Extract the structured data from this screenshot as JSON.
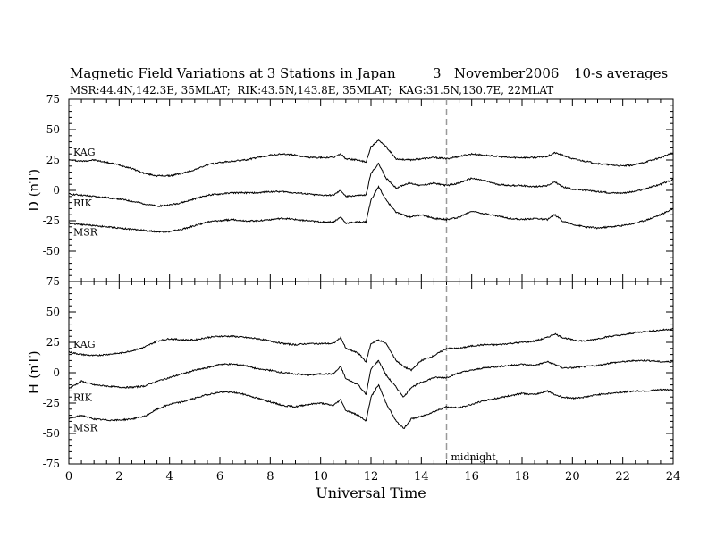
{
  "header": {
    "title": "Magnetic Field Variations at 3 Stations in Japan",
    "date": "3   November2006",
    "averaging": "10-s averages",
    "stations_line": "MSR:44.4N,142.3E, 35MLAT;  RIK:43.5N,143.8E, 35MLAT;  KAG:31.5N,130.7E, 22MLAT"
  },
  "chart_data": [
    {
      "type": "line",
      "panel": "top",
      "ylabel": "D (nT)",
      "ylim": [
        -75,
        75
      ],
      "yticks": [
        -75,
        -50,
        -25,
        0,
        25,
        50,
        75
      ],
      "xlim": [
        0,
        24
      ],
      "grid": false,
      "annotations": [
        {
          "text": "midnight",
          "x": 15
        }
      ],
      "reference_line": {
        "x": 15,
        "style": "dashed"
      },
      "series": [
        {
          "name": "KAG",
          "x": [
            0,
            0.5,
            1,
            1.5,
            2,
            2.5,
            3,
            3.5,
            4,
            4.5,
            5,
            5.5,
            6,
            6.5,
            7,
            7.5,
            8,
            8.5,
            9,
            9.5,
            10,
            10.5,
            10.8,
            11,
            11.5,
            11.8,
            12,
            12.3,
            12.6,
            13,
            13.5,
            14,
            14.5,
            15,
            15.5,
            16,
            16.5,
            17,
            17.5,
            18,
            18.5,
            19,
            19.3,
            19.6,
            20,
            20.5,
            21,
            21.5,
            22,
            22.5,
            23,
            23.5,
            24
          ],
          "values": [
            25,
            24,
            25,
            23,
            21,
            18,
            14,
            12,
            12,
            14,
            17,
            21,
            23,
            24,
            25,
            27,
            29,
            30,
            29,
            27,
            27,
            27,
            30,
            26,
            25,
            23,
            36,
            41,
            36,
            26,
            25,
            26,
            27,
            26,
            28,
            30,
            29,
            28,
            27,
            27,
            27,
            28,
            31,
            29,
            26,
            24,
            22,
            21,
            20,
            21,
            24,
            27,
            31
          ]
        },
        {
          "name": "RIK",
          "x": [
            0,
            0.5,
            1,
            1.5,
            2,
            2.5,
            3,
            3.5,
            4,
            4.5,
            5,
            5.5,
            6,
            6.5,
            7,
            7.5,
            8,
            8.5,
            9,
            9.5,
            10,
            10.5,
            10.8,
            11,
            11.5,
            11.8,
            12,
            12.3,
            12.6,
            13,
            13.5,
            14,
            14.5,
            15,
            15.5,
            16,
            16.5,
            17,
            17.5,
            18,
            18.5,
            19,
            19.3,
            19.6,
            20,
            20.5,
            21,
            21.5,
            22,
            22.5,
            23,
            23.5,
            24
          ],
          "values": [
            -3,
            -4,
            -5,
            -6,
            -7,
            -9,
            -11,
            -13,
            -12,
            -10,
            -7,
            -4,
            -3,
            -2,
            -2,
            -2,
            -1,
            -1,
            -2,
            -3,
            -4,
            -4,
            0,
            -5,
            -4,
            -4,
            14,
            22,
            10,
            2,
            6,
            4,
            6,
            4,
            6,
            10,
            8,
            5,
            4,
            4,
            3,
            4,
            7,
            3,
            1,
            0,
            -1,
            -2,
            -2,
            -1,
            2,
            5,
            9
          ]
        },
        {
          "name": "MSR",
          "x": [
            0,
            0.5,
            1,
            1.5,
            2,
            2.5,
            3,
            3.5,
            4,
            4.5,
            5,
            5.5,
            6,
            6.5,
            7,
            7.5,
            8,
            8.5,
            9,
            9.5,
            10,
            10.5,
            10.8,
            11,
            11.5,
            11.8,
            12,
            12.3,
            12.6,
            13,
            13.5,
            14,
            14.5,
            15,
            15.5,
            16,
            16.5,
            17,
            17.5,
            18,
            18.5,
            19,
            19.3,
            19.6,
            20,
            20.5,
            21,
            21.5,
            22,
            22.5,
            23,
            23.5,
            24
          ],
          "values": [
            -27,
            -28,
            -29,
            -30,
            -31,
            -32,
            -33,
            -34,
            -34,
            -32,
            -29,
            -26,
            -25,
            -24,
            -25,
            -25,
            -24,
            -23,
            -24,
            -25,
            -26,
            -26,
            -22,
            -27,
            -26,
            -26,
            -8,
            3,
            -8,
            -18,
            -22,
            -20,
            -23,
            -24,
            -22,
            -17,
            -19,
            -21,
            -23,
            -24,
            -23,
            -24,
            -20,
            -25,
            -28,
            -30,
            -31,
            -30,
            -29,
            -27,
            -24,
            -20,
            -15
          ]
        }
      ]
    },
    {
      "type": "line",
      "panel": "bottom",
      "xlabel": "Universal Time",
      "ylabel": "H (nT)",
      "ylim": [
        -75,
        75
      ],
      "yticks": [
        -75,
        -50,
        -25,
        0,
        25,
        50,
        75
      ],
      "xlim": [
        0,
        24
      ],
      "xticks": [
        0,
        2,
        4,
        6,
        8,
        10,
        12,
        14,
        16,
        18,
        20,
        22,
        24
      ],
      "grid": false,
      "series": [
        {
          "name": "KAG",
          "x": [
            0,
            0.5,
            1,
            1.5,
            2,
            2.5,
            3,
            3.5,
            4,
            4.5,
            5,
            5.5,
            6,
            6.5,
            7,
            7.5,
            8,
            8.5,
            9,
            9.5,
            10,
            10.5,
            10.8,
            11,
            11.5,
            11.8,
            12,
            12.3,
            12.6,
            13,
            13.3,
            13.6,
            14,
            14.5,
            15,
            15.5,
            16,
            16.5,
            17,
            17.5,
            18,
            18.5,
            19,
            19.3,
            19.6,
            20,
            20.5,
            21,
            21.5,
            22,
            22.5,
            23,
            23.5,
            24
          ],
          "values": [
            17,
            15,
            14,
            15,
            16,
            18,
            21,
            26,
            28,
            27,
            27,
            29,
            30,
            30,
            29,
            28,
            26,
            24,
            23,
            24,
            24,
            24,
            29,
            20,
            16,
            9,
            24,
            27,
            24,
            10,
            5,
            2,
            10,
            14,
            20,
            20,
            22,
            23,
            23,
            24,
            25,
            26,
            29,
            32,
            29,
            27,
            26,
            28,
            30,
            31,
            33,
            34,
            35,
            36
          ]
        },
        {
          "name": "RIK",
          "x": [
            0,
            0.5,
            1,
            1.5,
            2,
            2.5,
            3,
            3.5,
            4,
            4.5,
            5,
            5.5,
            6,
            6.5,
            7,
            7.5,
            8,
            8.5,
            9,
            9.5,
            10,
            10.5,
            10.8,
            11,
            11.5,
            11.8,
            12,
            12.3,
            12.6,
            13,
            13.3,
            13.6,
            14,
            14.5,
            15,
            15.5,
            16,
            16.5,
            17,
            17.5,
            18,
            18.5,
            19,
            19.3,
            19.6,
            20,
            20.5,
            21,
            21.5,
            22,
            22.5,
            23,
            23.5,
            24
          ],
          "values": [
            -13,
            -7,
            -10,
            -11,
            -12,
            -12,
            -11,
            -7,
            -4,
            -1,
            2,
            4,
            7,
            7,
            6,
            3,
            2,
            0,
            -1,
            -2,
            -1,
            -1,
            5,
            -5,
            -10,
            -18,
            3,
            10,
            -2,
            -12,
            -20,
            -12,
            -8,
            -4,
            -4,
            0,
            2,
            4,
            5,
            6,
            7,
            6,
            9,
            7,
            4,
            4,
            5,
            6,
            8,
            9,
            10,
            10,
            9,
            9
          ]
        },
        {
          "name": "MSR",
          "x": [
            0,
            0.5,
            1,
            1.5,
            2,
            2.5,
            3,
            3.5,
            4,
            4.5,
            5,
            5.5,
            6,
            6.5,
            7,
            7.5,
            8,
            8.5,
            9,
            9.5,
            10,
            10.5,
            10.8,
            11,
            11.5,
            11.8,
            12,
            12.3,
            12.6,
            13,
            13.3,
            13.6,
            14,
            14.5,
            15,
            15.5,
            16,
            16.5,
            17,
            17.5,
            18,
            18.5,
            19,
            19.3,
            19.6,
            20,
            20.5,
            21,
            21.5,
            22,
            22.5,
            23,
            23.5,
            24
          ],
          "values": [
            -38,
            -35,
            -38,
            -39,
            -39,
            -38,
            -36,
            -30,
            -26,
            -24,
            -21,
            -18,
            -16,
            -16,
            -18,
            -21,
            -24,
            -27,
            -28,
            -26,
            -25,
            -27,
            -22,
            -31,
            -35,
            -40,
            -20,
            -10,
            -25,
            -40,
            -46,
            -38,
            -36,
            -32,
            -28,
            -29,
            -26,
            -23,
            -21,
            -19,
            -17,
            -18,
            -15,
            -18,
            -20,
            -21,
            -20,
            -18,
            -17,
            -16,
            -15,
            -15,
            -14,
            -14
          ]
        }
      ]
    }
  ]
}
